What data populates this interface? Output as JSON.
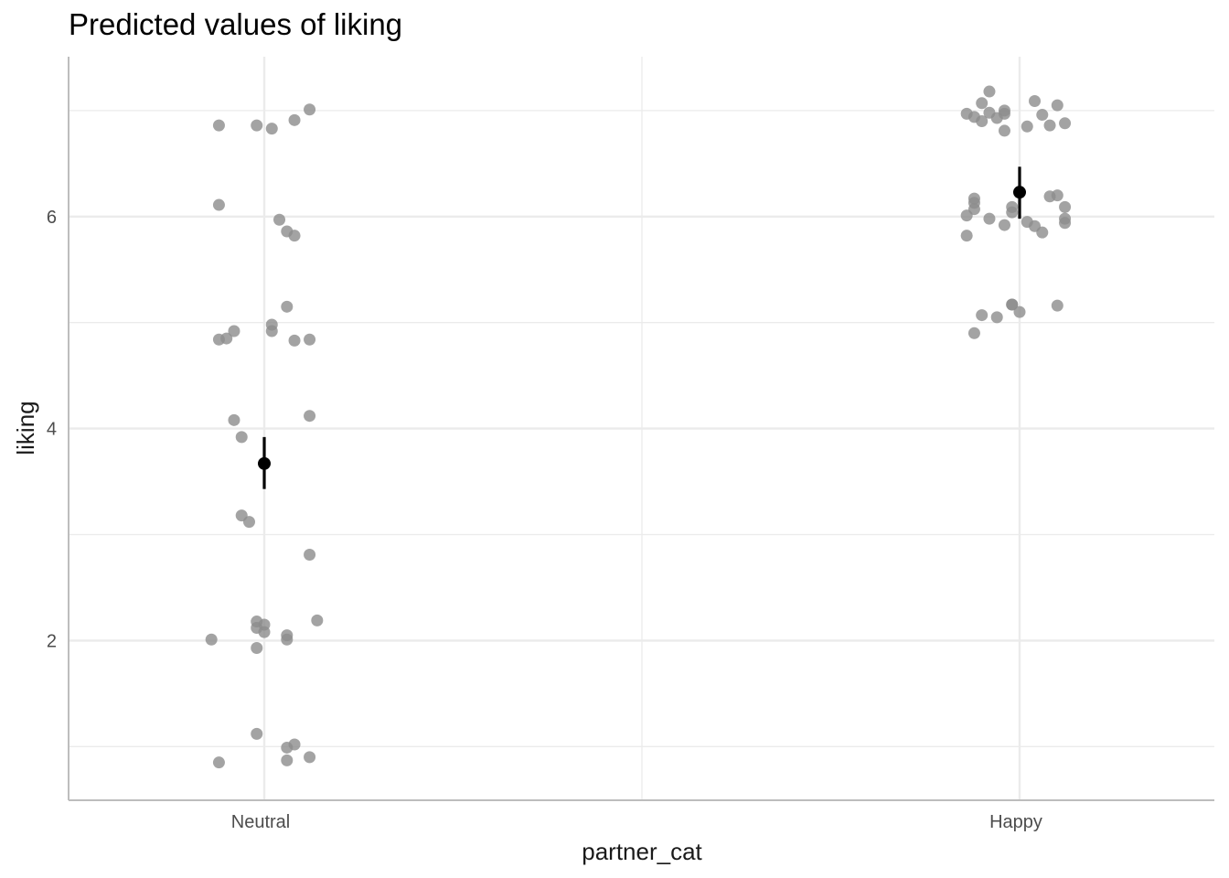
{
  "chart_data": {
    "type": "scatter",
    "title": "Predicted values of liking",
    "xlabel": "partner_cat",
    "ylabel": "liking",
    "categories": [
      "Neutral",
      "Happy"
    ],
    "ylim": [
      0.5,
      7.5
    ],
    "yticks": [
      2,
      4,
      6
    ],
    "grid": true,
    "colors": {
      "points": "#8c8c8c",
      "estimate": "#000000",
      "grid": "#ebebeb",
      "axis": "#bdbdbd"
    },
    "estimates": [
      {
        "category": "Neutral",
        "value": 3.67,
        "ci_low": 3.43,
        "ci_high": 3.92
      },
      {
        "category": "Happy",
        "value": 6.23,
        "ci_low": 5.98,
        "ci_high": 6.47
      }
    ],
    "points": [
      {
        "category": "Neutral",
        "jitter": -0.06,
        "y": 6.86
      },
      {
        "category": "Neutral",
        "jitter": -0.01,
        "y": 6.86
      },
      {
        "category": "Neutral",
        "jitter": 0.01,
        "y": 6.83
      },
      {
        "category": "Neutral",
        "jitter": 0.04,
        "y": 6.91
      },
      {
        "category": "Neutral",
        "jitter": 0.06,
        "y": 7.01
      },
      {
        "category": "Neutral",
        "jitter": -0.06,
        "y": 6.11
      },
      {
        "category": "Neutral",
        "jitter": 0.02,
        "y": 5.97
      },
      {
        "category": "Neutral",
        "jitter": 0.03,
        "y": 5.86
      },
      {
        "category": "Neutral",
        "jitter": 0.04,
        "y": 5.82
      },
      {
        "category": "Neutral",
        "jitter": 0.03,
        "y": 5.15
      },
      {
        "category": "Neutral",
        "jitter": 0.01,
        "y": 4.98
      },
      {
        "category": "Neutral",
        "jitter": 0.01,
        "y": 4.92
      },
      {
        "category": "Neutral",
        "jitter": -0.04,
        "y": 4.92
      },
      {
        "category": "Neutral",
        "jitter": -0.06,
        "y": 4.84
      },
      {
        "category": "Neutral",
        "jitter": -0.05,
        "y": 4.85
      },
      {
        "category": "Neutral",
        "jitter": 0.04,
        "y": 4.83
      },
      {
        "category": "Neutral",
        "jitter": 0.06,
        "y": 4.84
      },
      {
        "category": "Neutral",
        "jitter": 0.06,
        "y": 4.12
      },
      {
        "category": "Neutral",
        "jitter": -0.04,
        "y": 4.08
      },
      {
        "category": "Neutral",
        "jitter": -0.03,
        "y": 3.92
      },
      {
        "category": "Neutral",
        "jitter": -0.03,
        "y": 3.18
      },
      {
        "category": "Neutral",
        "jitter": -0.02,
        "y": 3.12
      },
      {
        "category": "Neutral",
        "jitter": 0.06,
        "y": 2.81
      },
      {
        "category": "Neutral",
        "jitter": 0.07,
        "y": 2.19
      },
      {
        "category": "Neutral",
        "jitter": -0.01,
        "y": 2.18
      },
      {
        "category": "Neutral",
        "jitter": 0.0,
        "y": 2.15
      },
      {
        "category": "Neutral",
        "jitter": -0.01,
        "y": 2.12
      },
      {
        "category": "Neutral",
        "jitter": 0.0,
        "y": 2.08
      },
      {
        "category": "Neutral",
        "jitter": 0.03,
        "y": 2.05
      },
      {
        "category": "Neutral",
        "jitter": 0.03,
        "y": 2.01
      },
      {
        "category": "Neutral",
        "jitter": -0.07,
        "y": 2.01
      },
      {
        "category": "Neutral",
        "jitter": -0.01,
        "y": 1.93
      },
      {
        "category": "Neutral",
        "jitter": -0.01,
        "y": 1.12
      },
      {
        "category": "Neutral",
        "jitter": 0.04,
        "y": 1.02
      },
      {
        "category": "Neutral",
        "jitter": 0.03,
        "y": 0.99
      },
      {
        "category": "Neutral",
        "jitter": 0.06,
        "y": 0.9
      },
      {
        "category": "Neutral",
        "jitter": 0.03,
        "y": 0.87
      },
      {
        "category": "Neutral",
        "jitter": -0.06,
        "y": 0.85
      },
      {
        "category": "Happy",
        "jitter": -0.04,
        "y": 7.18
      },
      {
        "category": "Happy",
        "jitter": -0.05,
        "y": 7.07
      },
      {
        "category": "Happy",
        "jitter": 0.02,
        "y": 7.09
      },
      {
        "category": "Happy",
        "jitter": 0.05,
        "y": 7.05
      },
      {
        "category": "Happy",
        "jitter": -0.02,
        "y": 7.0
      },
      {
        "category": "Happy",
        "jitter": -0.04,
        "y": 6.98
      },
      {
        "category": "Happy",
        "jitter": -0.07,
        "y": 6.97
      },
      {
        "category": "Happy",
        "jitter": -0.02,
        "y": 6.97
      },
      {
        "category": "Happy",
        "jitter": 0.03,
        "y": 6.96
      },
      {
        "category": "Happy",
        "jitter": -0.06,
        "y": 6.94
      },
      {
        "category": "Happy",
        "jitter": -0.03,
        "y": 6.93
      },
      {
        "category": "Happy",
        "jitter": -0.05,
        "y": 6.9
      },
      {
        "category": "Happy",
        "jitter": 0.06,
        "y": 6.88
      },
      {
        "category": "Happy",
        "jitter": 0.04,
        "y": 6.86
      },
      {
        "category": "Happy",
        "jitter": 0.01,
        "y": 6.85
      },
      {
        "category": "Happy",
        "jitter": -0.02,
        "y": 6.81
      },
      {
        "category": "Happy",
        "jitter": 0.04,
        "y": 6.19
      },
      {
        "category": "Happy",
        "jitter": 0.05,
        "y": 6.2
      },
      {
        "category": "Happy",
        "jitter": -0.06,
        "y": 6.17
      },
      {
        "category": "Happy",
        "jitter": -0.06,
        "y": 6.13
      },
      {
        "category": "Happy",
        "jitter": -0.06,
        "y": 6.07
      },
      {
        "category": "Happy",
        "jitter": -0.01,
        "y": 6.09
      },
      {
        "category": "Happy",
        "jitter": 0.06,
        "y": 6.09
      },
      {
        "category": "Happy",
        "jitter": -0.01,
        "y": 6.04
      },
      {
        "category": "Happy",
        "jitter": -0.07,
        "y": 6.01
      },
      {
        "category": "Happy",
        "jitter": -0.04,
        "y": 5.98
      },
      {
        "category": "Happy",
        "jitter": 0.06,
        "y": 5.98
      },
      {
        "category": "Happy",
        "jitter": 0.01,
        "y": 5.95
      },
      {
        "category": "Happy",
        "jitter": 0.06,
        "y": 5.94
      },
      {
        "category": "Happy",
        "jitter": -0.02,
        "y": 5.92
      },
      {
        "category": "Happy",
        "jitter": 0.02,
        "y": 5.91
      },
      {
        "category": "Happy",
        "jitter": 0.03,
        "y": 5.85
      },
      {
        "category": "Happy",
        "jitter": -0.07,
        "y": 5.82
      },
      {
        "category": "Happy",
        "jitter": -0.01,
        "y": 5.17
      },
      {
        "category": "Happy",
        "jitter": -0.01,
        "y": 5.17
      },
      {
        "category": "Happy",
        "jitter": 0.05,
        "y": 5.16
      },
      {
        "category": "Happy",
        "jitter": 0.0,
        "y": 5.1
      },
      {
        "category": "Happy",
        "jitter": -0.05,
        "y": 5.07
      },
      {
        "category": "Happy",
        "jitter": -0.03,
        "y": 5.05
      },
      {
        "category": "Happy",
        "jitter": -0.06,
        "y": 4.9
      }
    ]
  }
}
